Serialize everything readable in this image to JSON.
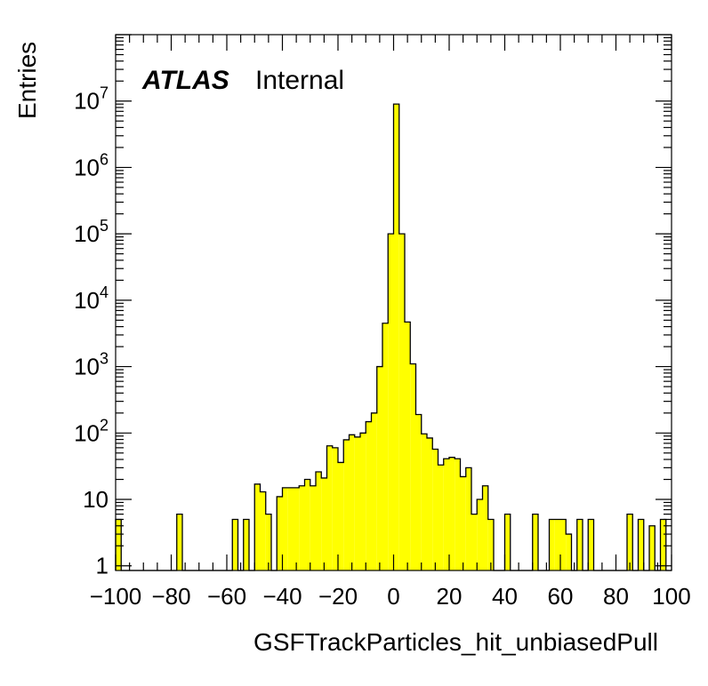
{
  "chart_data": {
    "type": "bar",
    "xlabel": "GSFTrackParticles_hit_unbiasedPull",
    "ylabel": "Entries",
    "experiment_label": "ATLAS",
    "status_label": "Internal",
    "xlim": [
      -100,
      100
    ],
    "ylim": [
      0.85,
      100000000
    ],
    "yscale": "log",
    "bin_width": 2,
    "fill_color": "#ffff00",
    "line_color": "#000000",
    "x_ticks": [
      {
        "value": -100,
        "label": "−100"
      },
      {
        "value": -80,
        "label": "−80"
      },
      {
        "value": -60,
        "label": "−60"
      },
      {
        "value": -40,
        "label": "−40"
      },
      {
        "value": -20,
        "label": "−20"
      },
      {
        "value": 0,
        "label": "0"
      },
      {
        "value": 20,
        "label": "20"
      },
      {
        "value": 40,
        "label": "40"
      },
      {
        "value": 60,
        "label": "60"
      },
      {
        "value": 80,
        "label": "80"
      },
      {
        "value": 100,
        "label": "100"
      }
    ],
    "y_ticks": [
      {
        "value": 1,
        "base": "1",
        "exp": ""
      },
      {
        "value": 10,
        "base": "10",
        "exp": ""
      },
      {
        "value": 100,
        "base": "10",
        "exp": "2"
      },
      {
        "value": 1000,
        "base": "10",
        "exp": "3"
      },
      {
        "value": 10000,
        "base": "10",
        "exp": "4"
      },
      {
        "value": 100000,
        "base": "10",
        "exp": "5"
      },
      {
        "value": 1000000,
        "base": "10",
        "exp": "6"
      },
      {
        "value": 10000000,
        "base": "10",
        "exp": "7"
      }
    ],
    "bins": [
      [
        -100,
        5
      ],
      [
        -98,
        0
      ],
      [
        -96,
        0
      ],
      [
        -94,
        0
      ],
      [
        -92,
        0
      ],
      [
        -90,
        0
      ],
      [
        -88,
        0
      ],
      [
        -86,
        0
      ],
      [
        -84,
        0
      ],
      [
        -82,
        0
      ],
      [
        -80,
        0
      ],
      [
        -78,
        6
      ],
      [
        -76,
        0
      ],
      [
        -74,
        0
      ],
      [
        -72,
        0
      ],
      [
        -70,
        0
      ],
      [
        -68,
        0
      ],
      [
        -66,
        0
      ],
      [
        -64,
        0
      ],
      [
        -62,
        0
      ],
      [
        -60,
        0
      ],
      [
        -58,
        5
      ],
      [
        -56,
        0
      ],
      [
        -54,
        5
      ],
      [
        -52,
        0
      ],
      [
        -50,
        17
      ],
      [
        -48,
        13
      ],
      [
        -46,
        6
      ],
      [
        -44,
        0
      ],
      [
        -42,
        11
      ],
      [
        -40,
        15
      ],
      [
        -38,
        15
      ],
      [
        -36,
        15
      ],
      [
        -34,
        16
      ],
      [
        -32,
        20
      ],
      [
        -30,
        16
      ],
      [
        -28,
        26
      ],
      [
        -26,
        21
      ],
      [
        -24,
        64
      ],
      [
        -22,
        60
      ],
      [
        -20,
        36
      ],
      [
        -18,
        79
      ],
      [
        -16,
        94
      ],
      [
        -14,
        87
      ],
      [
        -12,
        100
      ],
      [
        -10,
        148
      ],
      [
        -8,
        200
      ],
      [
        -6,
        1000
      ],
      [
        -4,
        4500
      ],
      [
        -2,
        100000
      ],
      [
        0,
        9000000
      ],
      [
        2,
        100000
      ],
      [
        4,
        4700
      ],
      [
        6,
        1100
      ],
      [
        8,
        190
      ],
      [
        10,
        97
      ],
      [
        12,
        84
      ],
      [
        14,
        57
      ],
      [
        16,
        33
      ],
      [
        18,
        41
      ],
      [
        20,
        43
      ],
      [
        22,
        41
      ],
      [
        24,
        22
      ],
      [
        26,
        30
      ],
      [
        28,
        6
      ],
      [
        30,
        10
      ],
      [
        32,
        16
      ],
      [
        34,
        5
      ],
      [
        36,
        0
      ],
      [
        38,
        0
      ],
      [
        40,
        6
      ],
      [
        42,
        0
      ],
      [
        44,
        0
      ],
      [
        46,
        0
      ],
      [
        48,
        0
      ],
      [
        50,
        6
      ],
      [
        52,
        0
      ],
      [
        54,
        0
      ],
      [
        56,
        5
      ],
      [
        58,
        5
      ],
      [
        60,
        5
      ],
      [
        62,
        3
      ],
      [
        64,
        0
      ],
      [
        66,
        5
      ],
      [
        68,
        0
      ],
      [
        70,
        5
      ],
      [
        72,
        0
      ],
      [
        74,
        0
      ],
      [
        76,
        0
      ],
      [
        78,
        0
      ],
      [
        80,
        0
      ],
      [
        82,
        0
      ],
      [
        84,
        6
      ],
      [
        86,
        0
      ],
      [
        88,
        5
      ],
      [
        90,
        0
      ],
      [
        92,
        4
      ],
      [
        94,
        0
      ],
      [
        96,
        5
      ],
      [
        98,
        0
      ]
    ]
  }
}
